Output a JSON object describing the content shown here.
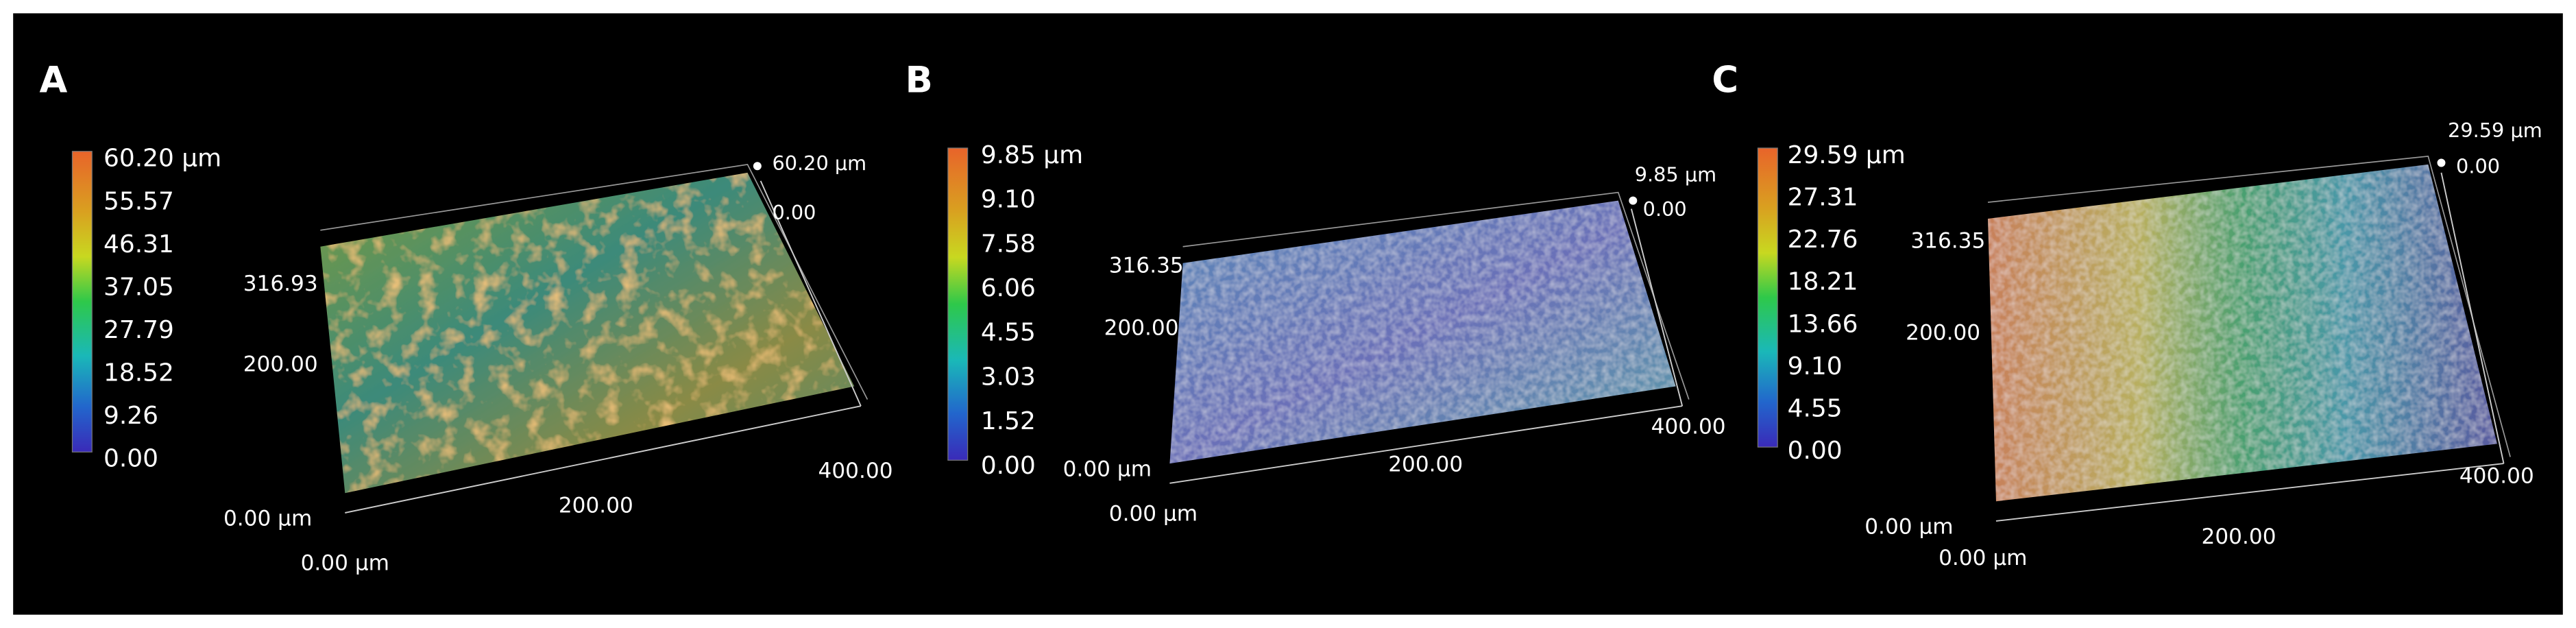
{
  "panels": [
    {
      "label": "A",
      "colorbar": [
        "60.20 µm",
        "55.57",
        "46.31",
        "37.05",
        "27.79",
        "18.52",
        "9.26",
        "0.00"
      ],
      "z_top": "60.20 µm",
      "z_bottom": "0.00",
      "y_axis": [
        "316.93",
        "200.00",
        "0.00 µm"
      ],
      "x_axis": [
        "0.00 µm",
        "200.00",
        "400.00"
      ]
    },
    {
      "label": "B",
      "colorbar": [
        "9.85 µm",
        "9.10",
        "7.58",
        "6.06",
        "4.55",
        "3.03",
        "1.52",
        "0.00"
      ],
      "z_top": "9.85 µm",
      "z_bottom": "0.00",
      "y_axis": [
        "316.35",
        "200.00",
        "0.00 µm"
      ],
      "x_axis": [
        "0.00 µm",
        "200.00",
        "400.00"
      ]
    },
    {
      "label": "C",
      "colorbar": [
        "29.59 µm",
        "27.31",
        "22.76",
        "18.21",
        "13.66",
        "9.10",
        "4.55",
        "0.00"
      ],
      "z_top": "29.59 µm",
      "z_bottom": "0.00",
      "y_axis": [
        "316.35",
        "200.00",
        "0.00 µm"
      ],
      "x_axis": [
        "0.00 µm",
        "200.00",
        "400.00"
      ]
    }
  ]
}
